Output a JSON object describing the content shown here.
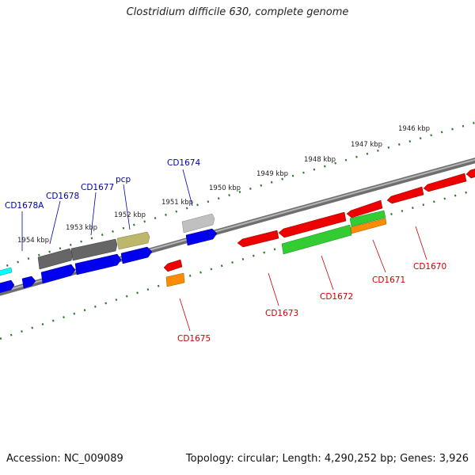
{
  "title": "Clostridium difficile 630, complete genome",
  "accession": "Accession: NC_009089",
  "topology": "Topology: circular; Length: 4,290,252 bp; Genes: 3,926",
  "kbp_labels": [
    "1946 kbp",
    "1947 kbp",
    "1948 kbp",
    "1949 kbp",
    "1950 kbp",
    "1951 kbp",
    "1952 kbp",
    "1953 kbp",
    "1954 kbp"
  ],
  "gene_labels_top": [
    "CD1678A",
    "CD1678",
    "CD1677",
    "pcp",
    "CD1674"
  ],
  "gene_labels_bottom": [
    "CD1675",
    "CD1673",
    "CD1672",
    "CD1671",
    "CD1670"
  ],
  "colors": {
    "forward": "#0000ff",
    "reverse": "#ff0000",
    "rna": "#33cc33",
    "dark_gray": "#666666",
    "light_gray": "#bbbbbb",
    "khaki": "#bdb76b",
    "orange": "#ff8c00",
    "cyan": "#00ffff",
    "tick": "#2a7a2a",
    "backbone": "#888888",
    "label_blue": "#0000aa",
    "label_red": "#cc0000"
  }
}
